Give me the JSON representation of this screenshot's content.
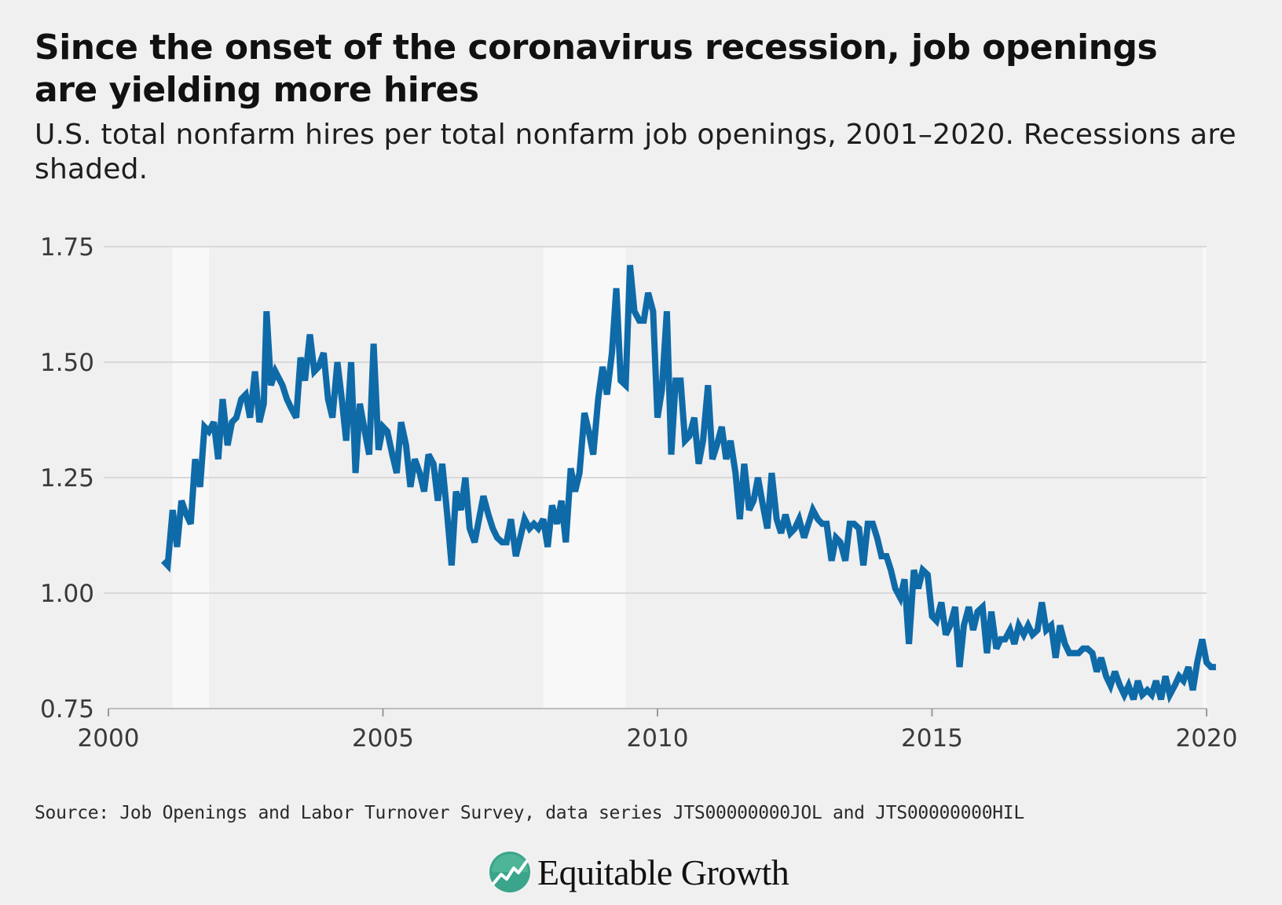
{
  "title": "Since the onset of the coronavirus recession, job openings are yielding more hires",
  "subtitle": "U.S. total nonfarm hires per total nonfarm job openings, 2001–2020. Recessions are shaded.",
  "source": "Source: Job Openings and Labor Turnover Survey, data series JTS00000000JOL and JTS00000000HIL",
  "brand": {
    "name": "Equitable Growth",
    "logo_icon": "equitable-growth-logo-icon",
    "logo_color": "#3aa58a"
  },
  "chart_data": {
    "type": "line",
    "title": "Since the onset of the coronavirus recession, job openings are yielding more hires",
    "xlabel": "",
    "ylabel": "",
    "xlim": [
      2000,
      2020
    ],
    "ylim": [
      0.75,
      1.75
    ],
    "x_ticks": [
      2000,
      2005,
      2010,
      2015,
      2020
    ],
    "x_tick_labels": [
      "2000",
      "2005",
      "2010",
      "2015",
      "2020"
    ],
    "y_ticks": [
      0.75,
      1.0,
      1.25,
      1.5,
      1.75
    ],
    "y_tick_labels": [
      "0.75",
      "1.00",
      "1.25",
      "1.50",
      "1.75"
    ],
    "grid": true,
    "line_color": "#0f6aa8",
    "recession_color": "#f8f8f8",
    "background_color": "#efefef",
    "grid_color": "#d9d9d9",
    "recessions": [
      [
        2001.17,
        2001.83
      ],
      [
        2007.92,
        2009.42
      ],
      [
        2019.92,
        2020.25
      ]
    ],
    "series": [
      {
        "values": [
          [
            2001.0,
            1.07
          ],
          [
            2001.08,
            1.06
          ],
          [
            2001.17,
            1.18
          ],
          [
            2001.25,
            1.1
          ],
          [
            2001.33,
            1.2
          ],
          [
            2001.42,
            1.17
          ],
          [
            2001.5,
            1.15
          ],
          [
            2001.58,
            1.29
          ],
          [
            2001.67,
            1.23
          ],
          [
            2001.75,
            1.36
          ],
          [
            2001.83,
            1.35
          ],
          [
            2001.92,
            1.37
          ],
          [
            2002.0,
            1.29
          ],
          [
            2002.08,
            1.42
          ],
          [
            2002.17,
            1.32
          ],
          [
            2002.25,
            1.37
          ],
          [
            2002.33,
            1.38
          ],
          [
            2002.42,
            1.42
          ],
          [
            2002.5,
            1.43
          ],
          [
            2002.58,
            1.38
          ],
          [
            2002.67,
            1.48
          ],
          [
            2002.75,
            1.37
          ],
          [
            2002.83,
            1.41
          ],
          [
            2002.88,
            1.61
          ],
          [
            2002.96,
            1.45
          ],
          [
            2003.04,
            1.48
          ],
          [
            2003.17,
            1.45
          ],
          [
            2003.25,
            1.42
          ],
          [
            2003.33,
            1.4
          ],
          [
            2003.42,
            1.38
          ],
          [
            2003.5,
            1.51
          ],
          [
            2003.58,
            1.46
          ],
          [
            2003.67,
            1.56
          ],
          [
            2003.75,
            1.48
          ],
          [
            2003.83,
            1.49
          ],
          [
            2003.92,
            1.52
          ],
          [
            2004.0,
            1.42
          ],
          [
            2004.08,
            1.38
          ],
          [
            2004.17,
            1.5
          ],
          [
            2004.25,
            1.42
          ],
          [
            2004.33,
            1.33
          ],
          [
            2004.42,
            1.5
          ],
          [
            2004.5,
            1.26
          ],
          [
            2004.58,
            1.41
          ],
          [
            2004.67,
            1.35
          ],
          [
            2004.75,
            1.3
          ],
          [
            2004.83,
            1.54
          ],
          [
            2004.92,
            1.31
          ],
          [
            2005.0,
            1.36
          ],
          [
            2005.08,
            1.35
          ],
          [
            2005.17,
            1.3
          ],
          [
            2005.25,
            1.26
          ],
          [
            2005.33,
            1.37
          ],
          [
            2005.42,
            1.32
          ],
          [
            2005.5,
            1.23
          ],
          [
            2005.58,
            1.29
          ],
          [
            2005.67,
            1.26
          ],
          [
            2005.75,
            1.22
          ],
          [
            2005.83,
            1.3
          ],
          [
            2005.92,
            1.28
          ],
          [
            2006.0,
            1.2
          ],
          [
            2006.08,
            1.28
          ],
          [
            2006.17,
            1.17
          ],
          [
            2006.25,
            1.06
          ],
          [
            2006.33,
            1.22
          ],
          [
            2006.42,
            1.18
          ],
          [
            2006.5,
            1.25
          ],
          [
            2006.58,
            1.14
          ],
          [
            2006.67,
            1.11
          ],
          [
            2006.75,
            1.16
          ],
          [
            2006.83,
            1.21
          ],
          [
            2006.92,
            1.17
          ],
          [
            2007.0,
            1.14
          ],
          [
            2007.08,
            1.12
          ],
          [
            2007.17,
            1.11
          ],
          [
            2007.25,
            1.11
          ],
          [
            2007.33,
            1.16
          ],
          [
            2007.42,
            1.08
          ],
          [
            2007.5,
            1.12
          ],
          [
            2007.58,
            1.16
          ],
          [
            2007.67,
            1.14
          ],
          [
            2007.75,
            1.15
          ],
          [
            2007.83,
            1.14
          ],
          [
            2007.92,
            1.16
          ],
          [
            2008.0,
            1.1
          ],
          [
            2008.08,
            1.19
          ],
          [
            2008.17,
            1.15
          ],
          [
            2008.25,
            1.2
          ],
          [
            2008.33,
            1.11
          ],
          [
            2008.42,
            1.27
          ],
          [
            2008.5,
            1.22
          ],
          [
            2008.58,
            1.26
          ],
          [
            2008.67,
            1.39
          ],
          [
            2008.75,
            1.35
          ],
          [
            2008.83,
            1.3
          ],
          [
            2008.92,
            1.42
          ],
          [
            2009.0,
            1.49
          ],
          [
            2009.08,
            1.43
          ],
          [
            2009.17,
            1.52
          ],
          [
            2009.25,
            1.66
          ],
          [
            2009.33,
            1.46
          ],
          [
            2009.42,
            1.45
          ],
          [
            2009.5,
            1.71
          ],
          [
            2009.58,
            1.61
          ],
          [
            2009.67,
            1.59
          ],
          [
            2009.75,
            1.59
          ],
          [
            2009.83,
            1.65
          ],
          [
            2009.92,
            1.61
          ],
          [
            2010.0,
            1.38
          ],
          [
            2010.08,
            1.44
          ],
          [
            2010.17,
            1.61
          ],
          [
            2010.25,
            1.3
          ],
          [
            2010.33,
            1.46
          ],
          [
            2010.42,
            1.46
          ],
          [
            2010.5,
            1.33
          ],
          [
            2010.58,
            1.34
          ],
          [
            2010.67,
            1.38
          ],
          [
            2010.75,
            1.28
          ],
          [
            2010.83,
            1.33
          ],
          [
            2010.92,
            1.45
          ],
          [
            2011.0,
            1.29
          ],
          [
            2011.08,
            1.32
          ],
          [
            2011.17,
            1.36
          ],
          [
            2011.25,
            1.29
          ],
          [
            2011.33,
            1.33
          ],
          [
            2011.42,
            1.26
          ],
          [
            2011.5,
            1.16
          ],
          [
            2011.58,
            1.28
          ],
          [
            2011.67,
            1.18
          ],
          [
            2011.75,
            1.2
          ],
          [
            2011.83,
            1.25
          ],
          [
            2011.92,
            1.19
          ],
          [
            2012.0,
            1.14
          ],
          [
            2012.08,
            1.26
          ],
          [
            2012.17,
            1.16
          ],
          [
            2012.25,
            1.13
          ],
          [
            2012.33,
            1.17
          ],
          [
            2012.42,
            1.13
          ],
          [
            2012.5,
            1.14
          ],
          [
            2012.58,
            1.16
          ],
          [
            2012.67,
            1.12
          ],
          [
            2012.75,
            1.15
          ],
          [
            2012.83,
            1.18
          ],
          [
            2012.92,
            1.16
          ],
          [
            2013.0,
            1.15
          ],
          [
            2013.08,
            1.15
          ],
          [
            2013.17,
            1.07
          ],
          [
            2013.25,
            1.12
          ],
          [
            2013.33,
            1.11
          ],
          [
            2013.42,
            1.07
          ],
          [
            2013.5,
            1.15
          ],
          [
            2013.58,
            1.15
          ],
          [
            2013.67,
            1.14
          ],
          [
            2013.75,
            1.06
          ],
          [
            2013.83,
            1.15
          ],
          [
            2013.92,
            1.15
          ],
          [
            2014.0,
            1.12
          ],
          [
            2014.08,
            1.08
          ],
          [
            2014.17,
            1.08
          ],
          [
            2014.25,
            1.05
          ],
          [
            2014.33,
            1.01
          ],
          [
            2014.42,
            0.99
          ],
          [
            2014.5,
            1.03
          ],
          [
            2014.58,
            0.89
          ],
          [
            2014.67,
            1.05
          ],
          [
            2014.75,
            1.01
          ],
          [
            2014.83,
            1.05
          ],
          [
            2014.92,
            1.04
          ],
          [
            2015.0,
            0.95
          ],
          [
            2015.08,
            0.94
          ],
          [
            2015.17,
            0.98
          ],
          [
            2015.25,
            0.91
          ],
          [
            2015.33,
            0.93
          ],
          [
            2015.42,
            0.97
          ],
          [
            2015.5,
            0.84
          ],
          [
            2015.58,
            0.93
          ],
          [
            2015.67,
            0.97
          ],
          [
            2015.75,
            0.92
          ],
          [
            2015.83,
            0.96
          ],
          [
            2015.92,
            0.97
          ],
          [
            2016.0,
            0.87
          ],
          [
            2016.08,
            0.96
          ],
          [
            2016.17,
            0.88
          ],
          [
            2016.25,
            0.9
          ],
          [
            2016.33,
            0.9
          ],
          [
            2016.42,
            0.92
          ],
          [
            2016.5,
            0.89
          ],
          [
            2016.58,
            0.93
          ],
          [
            2016.67,
            0.91
          ],
          [
            2016.75,
            0.93
          ],
          [
            2016.83,
            0.91
          ],
          [
            2016.92,
            0.92
          ],
          [
            2017.0,
            0.98
          ],
          [
            2017.08,
            0.92
          ],
          [
            2017.17,
            0.93
          ],
          [
            2017.25,
            0.86
          ],
          [
            2017.33,
            0.93
          ],
          [
            2017.42,
            0.89
          ],
          [
            2017.5,
            0.87
          ],
          [
            2017.58,
            0.87
          ],
          [
            2017.67,
            0.87
          ],
          [
            2017.75,
            0.88
          ],
          [
            2017.83,
            0.88
          ],
          [
            2017.92,
            0.87
          ],
          [
            2018.0,
            0.83
          ],
          [
            2018.08,
            0.86
          ],
          [
            2018.17,
            0.82
          ],
          [
            2018.25,
            0.8
          ],
          [
            2018.33,
            0.83
          ],
          [
            2018.42,
            0.8
          ],
          [
            2018.5,
            0.78
          ],
          [
            2018.58,
            0.8
          ],
          [
            2018.67,
            0.77
          ],
          [
            2018.75,
            0.81
          ],
          [
            2018.83,
            0.78
          ],
          [
            2018.92,
            0.79
          ],
          [
            2019.0,
            0.78
          ],
          [
            2019.08,
            0.81
          ],
          [
            2019.17,
            0.77
          ],
          [
            2019.25,
            0.82
          ],
          [
            2019.33,
            0.78
          ],
          [
            2019.42,
            0.8
          ],
          [
            2019.5,
            0.82
          ],
          [
            2019.58,
            0.81
          ],
          [
            2019.67,
            0.84
          ],
          [
            2019.75,
            0.79
          ],
          [
            2019.83,
            0.85
          ],
          [
            2019.92,
            0.9
          ],
          [
            2020.0,
            0.85
          ],
          [
            2020.08,
            0.84
          ],
          [
            2020.17,
            0.84
          ]
        ]
      }
    ],
    "source": "Source: Job Openings and Labor Turnover Survey, data series JTS00000000JOL and JTS00000000HIL"
  }
}
